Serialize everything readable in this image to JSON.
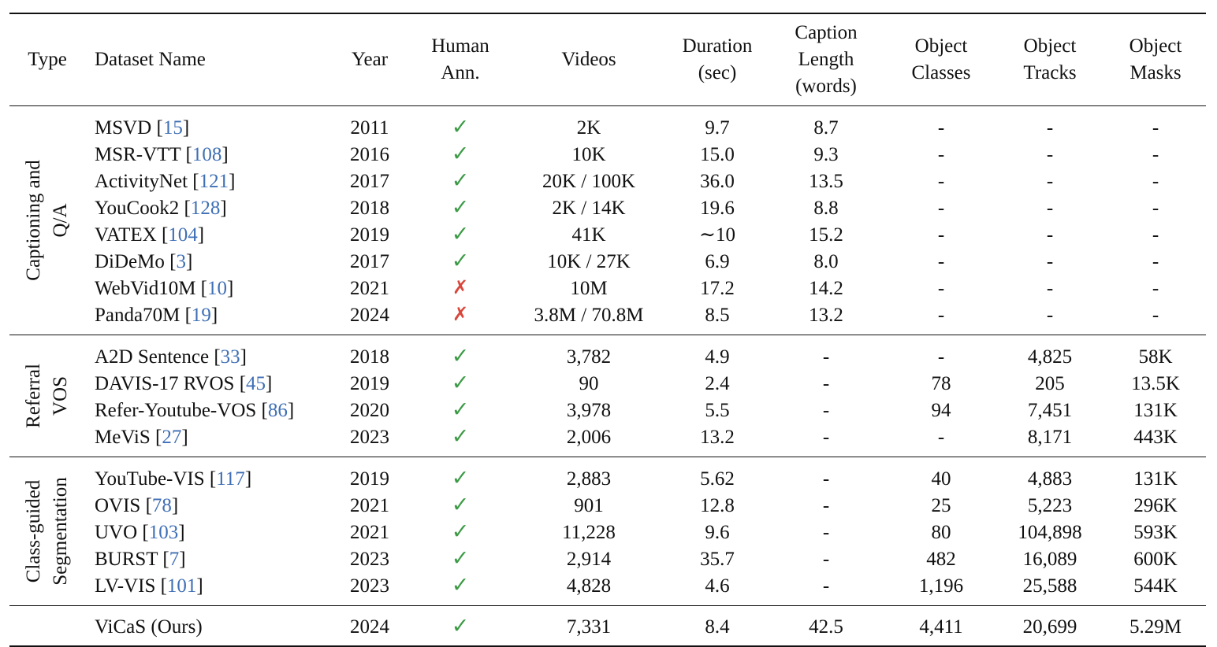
{
  "header": {
    "type": "Type",
    "dataset_name": "Dataset Name",
    "year": "Year",
    "human_ann": [
      "Human",
      "Ann."
    ],
    "videos": "Videos",
    "duration": [
      "Duration",
      "(sec)"
    ],
    "caption_length": [
      "Caption",
      "Length",
      "(words)"
    ],
    "object_classes": [
      "Object",
      "Classes"
    ],
    "object_tracks": [
      "Object",
      "Tracks"
    ],
    "object_masks": [
      "Object",
      "Masks"
    ]
  },
  "groups": [
    {
      "label": [
        "Captioning and",
        "Q/A"
      ],
      "rows": [
        {
          "name": "MSVD",
          "ref": "15",
          "year": "2011",
          "human": "check",
          "videos": "2K",
          "duration": "9.7",
          "caption": "8.7",
          "classes": "-",
          "tracks": "-",
          "masks": "-"
        },
        {
          "name": "MSR-VTT",
          "ref": "108",
          "year": "2016",
          "human": "check",
          "videos": "10K",
          "duration": "15.0",
          "caption": "9.3",
          "classes": "-",
          "tracks": "-",
          "masks": "-"
        },
        {
          "name": "ActivityNet",
          "ref": "121",
          "year": "2017",
          "human": "check",
          "videos": "20K / 100K",
          "duration": "36.0",
          "caption": "13.5",
          "classes": "-",
          "tracks": "-",
          "masks": "-"
        },
        {
          "name": "YouCook2",
          "ref": "128",
          "year": "2018",
          "human": "check",
          "videos": "2K / 14K",
          "duration": "19.6",
          "caption": "8.8",
          "classes": "-",
          "tracks": "-",
          "masks": "-"
        },
        {
          "name": "VATEX",
          "ref": "104",
          "year": "2019",
          "human": "check",
          "videos": "41K",
          "duration": "∼10",
          "caption": "15.2",
          "classes": "-",
          "tracks": "-",
          "masks": "-"
        },
        {
          "name": "DiDeMo",
          "ref": "3",
          "year": "2017",
          "human": "check",
          "videos": "10K / 27K",
          "duration": "6.9",
          "caption": "8.0",
          "classes": "-",
          "tracks": "-",
          "masks": "-"
        },
        {
          "name": "WebVid10M",
          "ref": "10",
          "year": "2021",
          "human": "cross",
          "videos": "10M",
          "duration": "17.2",
          "caption": "14.2",
          "classes": "-",
          "tracks": "-",
          "masks": "-"
        },
        {
          "name": "Panda70M",
          "ref": "19",
          "year": "2024",
          "human": "cross",
          "videos": "3.8M / 70.8M",
          "duration": "8.5",
          "caption": "13.2",
          "classes": "-",
          "tracks": "-",
          "masks": "-"
        }
      ]
    },
    {
      "label": [
        "Referral",
        "VOS"
      ],
      "rows": [
        {
          "name": "A2D Sentence",
          "ref": "33",
          "year": "2018",
          "human": "check",
          "videos": "3,782",
          "duration": "4.9",
          "caption": "-",
          "classes": "-",
          "tracks": "4,825",
          "masks": "58K"
        },
        {
          "name": "DAVIS-17 RVOS",
          "ref": "45",
          "year": "2019",
          "human": "check",
          "videos": "90",
          "duration": "2.4",
          "caption": "-",
          "classes": "78",
          "tracks": "205",
          "masks": "13.5K"
        },
        {
          "name": "Refer-Youtube-VOS",
          "ref": "86",
          "year": "2020",
          "human": "check",
          "videos": "3,978",
          "duration": "5.5",
          "caption": "-",
          "classes": "94",
          "tracks": "7,451",
          "masks": "131K"
        },
        {
          "name": "MeViS",
          "ref": "27",
          "year": "2023",
          "human": "check",
          "videos": "2,006",
          "duration": "13.2",
          "caption": "-",
          "classes": "-",
          "tracks": "8,171",
          "masks": "443K"
        }
      ]
    },
    {
      "label": [
        "Class-guided",
        "Segmentation"
      ],
      "rows": [
        {
          "name": "YouTube-VIS",
          "ref": "117",
          "year": "2019",
          "human": "check",
          "videos": "2,883",
          "duration": "5.62",
          "caption": "-",
          "classes": "40",
          "tracks": "4,883",
          "masks": "131K"
        },
        {
          "name": "OVIS",
          "ref": "78",
          "year": "2021",
          "human": "check",
          "videos": "901",
          "duration": "12.8",
          "caption": "-",
          "classes": "25",
          "tracks": "5,223",
          "masks": "296K"
        },
        {
          "name": "UVO",
          "ref": "103",
          "year": "2021",
          "human": "check",
          "videos": "11,228",
          "duration": "9.6",
          "caption": "-",
          "classes": "80",
          "tracks": "104,898",
          "masks": "593K"
        },
        {
          "name": "BURST",
          "ref": "7",
          "year": "2023",
          "human": "check",
          "videos": "2,914",
          "duration": "35.7",
          "caption": "-",
          "classes": "482",
          "tracks": "16,089",
          "masks": "600K"
        },
        {
          "name": "LV-VIS",
          "ref": "101",
          "year": "2023",
          "human": "check",
          "videos": "4,828",
          "duration": "4.6",
          "caption": "-",
          "classes": "1,196",
          "tracks": "25,588",
          "masks": "544K"
        }
      ]
    }
  ],
  "ours": {
    "name": "ViCaS (Ours)",
    "year": "2024",
    "human": "check",
    "videos": "7,331",
    "duration": "8.4",
    "caption": "42.5",
    "classes": "4,411",
    "tracks": "20,699",
    "masks": "5.29M"
  },
  "symbols": {
    "check": "✓",
    "cross": "✗"
  },
  "colors": {
    "check": "#3c9b45",
    "cross": "#d9463b",
    "reference": "#3f6fb5"
  }
}
